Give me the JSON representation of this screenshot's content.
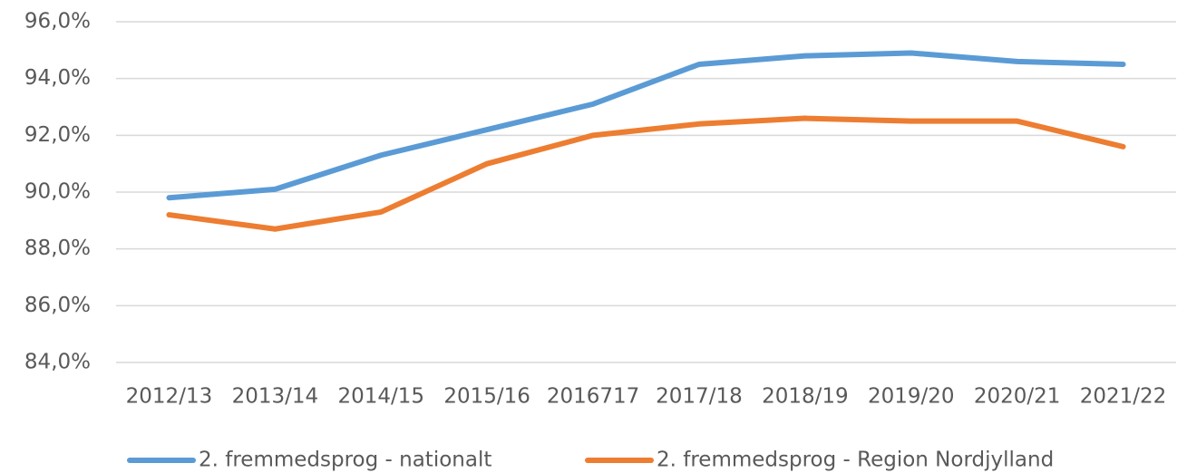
{
  "chart_data": {
    "type": "line",
    "categories": [
      "2012/13",
      "2013/14",
      "2014/15",
      "2015/16",
      "2016717",
      "2017/18",
      "2018/19",
      "2019/20",
      "2020/21",
      "2021/22"
    ],
    "series": [
      {
        "name": "2. fremmedsprog - nationalt",
        "color": "#5b9bd5",
        "values": [
          89.8,
          90.1,
          91.3,
          92.2,
          93.1,
          94.5,
          94.8,
          94.9,
          94.6,
          94.5
        ]
      },
      {
        "name": "2. fremmedsprog - Region Nordjylland",
        "color": "#ed7d31",
        "values": [
          89.2,
          88.7,
          89.3,
          91.0,
          92.0,
          92.4,
          92.6,
          92.5,
          92.5,
          91.6
        ]
      }
    ],
    "ylim": [
      84,
      96
    ],
    "yticks": [
      {
        "value": 84,
        "label": "84,0%"
      },
      {
        "value": 86,
        "label": "86,0%"
      },
      {
        "value": 88,
        "label": "88,0%"
      },
      {
        "value": 90,
        "label": "90,0%"
      },
      {
        "value": 92,
        "label": "92,0%"
      },
      {
        "value": 94,
        "label": "94,0%"
      },
      {
        "value": 96,
        "label": "96,0%"
      }
    ],
    "grid": true,
    "legend": "bottom"
  }
}
